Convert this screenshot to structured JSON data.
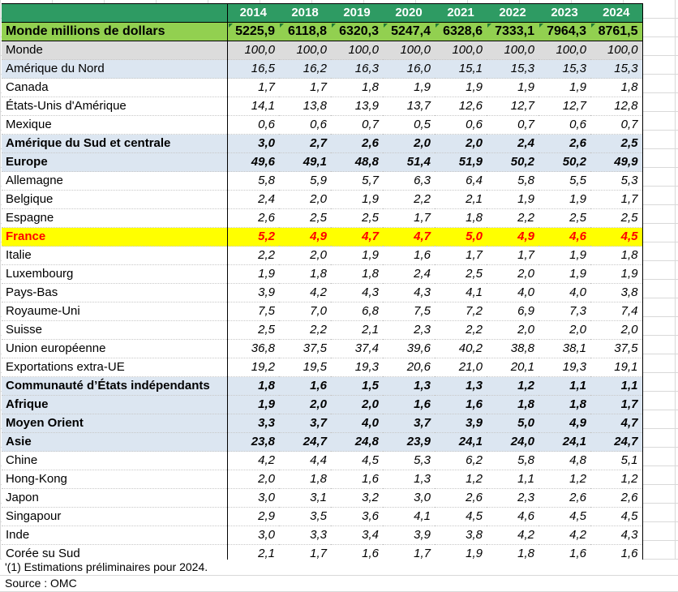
{
  "header": {
    "years": [
      "2014",
      "2018",
      "2019",
      "2020",
      "2021",
      "2022",
      "2023",
      "2024"
    ]
  },
  "total": {
    "label": "Monde  millions de dollars",
    "values": [
      "5225,9",
      "6118,8",
      "6320,3",
      "5247,4",
      "6328,6",
      "7333,1",
      "7964,3",
      "8761,5"
    ]
  },
  "rows": [
    {
      "label": "Monde",
      "style": "world",
      "indent": 0,
      "values": [
        "100,0",
        "100,0",
        "100,0",
        "100,0",
        "100,0",
        "100,0",
        "100,0",
        "100,0"
      ]
    },
    {
      "label": "Amérique du Nord",
      "style": "region",
      "indent": 0,
      "values": [
        "16,5",
        "16,2",
        "16,3",
        "16,0",
        "15,1",
        "15,3",
        "15,3",
        "15,3"
      ]
    },
    {
      "label": "Canada",
      "style": "plain",
      "indent": 1,
      "values": [
        "1,7",
        "1,7",
        "1,8",
        "1,9",
        "1,9",
        "1,9",
        "1,9",
        "1,8"
      ]
    },
    {
      "label": "États-Unis d'Amérique",
      "style": "plain",
      "indent": 1,
      "values": [
        "14,1",
        "13,8",
        "13,9",
        "13,7",
        "12,6",
        "12,7",
        "12,7",
        "12,8"
      ]
    },
    {
      "label": "Mexique",
      "style": "plain",
      "indent": 1,
      "values": [
        "0,6",
        "0,6",
        "0,7",
        "0,5",
        "0,6",
        "0,7",
        "0,6",
        "0,7"
      ]
    },
    {
      "label": "Amérique du Sud et centrale",
      "style": "region bold",
      "indent": 0,
      "values": [
        "3,0",
        "2,7",
        "2,6",
        "2,0",
        "2,0",
        "2,4",
        "2,6",
        "2,5"
      ]
    },
    {
      "label": "Europe",
      "style": "region bold",
      "indent": 0,
      "values": [
        "49,6",
        "49,1",
        "48,8",
        "51,4",
        "51,9",
        "50,2",
        "50,2",
        "49,9"
      ]
    },
    {
      "label": "Allemagne",
      "style": "plain",
      "indent": 1,
      "values": [
        "5,8",
        "5,9",
        "5,7",
        "6,3",
        "6,4",
        "5,8",
        "5,5",
        "5,3"
      ]
    },
    {
      "label": "Belgique",
      "style": "plain",
      "indent": 1,
      "values": [
        "2,4",
        "2,0",
        "1,9",
        "2,2",
        "2,1",
        "1,9",
        "1,9",
        "1,7"
      ]
    },
    {
      "label": "Espagne",
      "style": "plain",
      "indent": 1,
      "values": [
        "2,6",
        "2,5",
        "2,5",
        "1,7",
        "1,8",
        "2,2",
        "2,5",
        "2,5"
      ]
    },
    {
      "label": "France",
      "style": "france",
      "indent": 1,
      "values": [
        "5,2",
        "4,9",
        "4,7",
        "4,7",
        "5,0",
        "4,9",
        "4,6",
        "4,5"
      ]
    },
    {
      "label": "Italie",
      "style": "plain",
      "indent": 1,
      "values": [
        "2,2",
        "2,0",
        "1,9",
        "1,6",
        "1,7",
        "1,7",
        "1,9",
        "1,8"
      ]
    },
    {
      "label": "Luxembourg",
      "style": "plain",
      "indent": 1,
      "values": [
        "1,9",
        "1,8",
        "1,8",
        "2,4",
        "2,5",
        "2,0",
        "1,9",
        "1,9"
      ]
    },
    {
      "label": "Pays-Bas",
      "style": "plain",
      "indent": 1,
      "values": [
        "3,9",
        "4,2",
        "4,3",
        "4,3",
        "4,1",
        "4,0",
        "4,0",
        "3,8"
      ]
    },
    {
      "label": "Royaume-Uni",
      "style": "plain",
      "indent": 1,
      "values": [
        "7,5",
        "7,0",
        "6,8",
        "7,5",
        "7,2",
        "6,9",
        "7,3",
        "7,4"
      ]
    },
    {
      "label": "Suisse",
      "style": "plain",
      "indent": 1,
      "values": [
        "2,5",
        "2,2",
        "2,1",
        "2,3",
        "2,2",
        "2,0",
        "2,0",
        "2,0"
      ]
    },
    {
      "label": "Union européenne",
      "style": "plain",
      "indent": 0,
      "values": [
        "36,8",
        "37,5",
        "37,4",
        "39,6",
        "40,2",
        "38,8",
        "38,1",
        "37,5"
      ]
    },
    {
      "label": "Exportations extra-UE",
      "style": "plain",
      "indent": 0,
      "values": [
        "19,2",
        "19,5",
        "19,3",
        "20,6",
        "21,0",
        "20,1",
        "19,3",
        "19,1"
      ]
    },
    {
      "label": "Communauté d’États indépendants",
      "style": "region bold",
      "indent": 0,
      "values": [
        "1,8",
        "1,6",
        "1,5",
        "1,3",
        "1,3",
        "1,2",
        "1,1",
        "1,1"
      ]
    },
    {
      "label": "Afrique",
      "style": "region bold",
      "indent": 0,
      "values": [
        "1,9",
        "2,0",
        "2,0",
        "1,6",
        "1,6",
        "1,8",
        "1,8",
        "1,7"
      ]
    },
    {
      "label": "Moyen Orient",
      "style": "region bold",
      "indent": 0,
      "values": [
        "3,3",
        "3,7",
        "4,0",
        "3,7",
        "3,9",
        "5,0",
        "4,9",
        "4,7"
      ]
    },
    {
      "label": "Asie",
      "style": "region bold",
      "indent": 0,
      "values": [
        "23,8",
        "24,7",
        "24,8",
        "23,9",
        "24,1",
        "24,0",
        "24,1",
        "24,7"
      ]
    },
    {
      "label": "Chine",
      "style": "plain",
      "indent": 1,
      "values": [
        "4,2",
        "4,4",
        "4,5",
        "5,3",
        "6,2",
        "5,8",
        "4,8",
        "5,1"
      ]
    },
    {
      "label": "Hong-Kong",
      "style": "plain",
      "indent": 1,
      "values": [
        "2,0",
        "1,8",
        "1,6",
        "1,3",
        "1,2",
        "1,1",
        "1,2",
        "1,2"
      ]
    },
    {
      "label": "Japon",
      "style": "plain",
      "indent": 1,
      "values": [
        "3,0",
        "3,1",
        "3,2",
        "3,0",
        "2,6",
        "2,3",
        "2,6",
        "2,6"
      ]
    },
    {
      "label": "Singapour",
      "style": "plain",
      "indent": 2,
      "values": [
        "2,9",
        "3,5",
        "3,6",
        "4,1",
        "4,5",
        "4,6",
        "4,5",
        "4,5"
      ]
    },
    {
      "label": "Inde",
      "style": "plain",
      "indent": 2,
      "values": [
        "3,0",
        "3,3",
        "3,4",
        "3,9",
        "3,8",
        "4,2",
        "4,2",
        "4,3"
      ]
    },
    {
      "label": "Corée su Sud",
      "style": "plain",
      "indent": 2,
      "values": [
        "2,1",
        "1,7",
        "1,6",
        "1,7",
        "1,9",
        "1,8",
        "1,6",
        "1,6"
      ]
    }
  ],
  "notes": {
    "estimate": "'(1) Estimations préliminaires pour 2024.",
    "source": "Source : OMC"
  },
  "colors": {
    "header_bg": "#2e9b63",
    "total_bg": "#92d050",
    "region_bg": "#dce6f1",
    "world_bg": "#dcdcdc",
    "highlight_bg": "#ffff00",
    "highlight_text": "#ff0000"
  }
}
